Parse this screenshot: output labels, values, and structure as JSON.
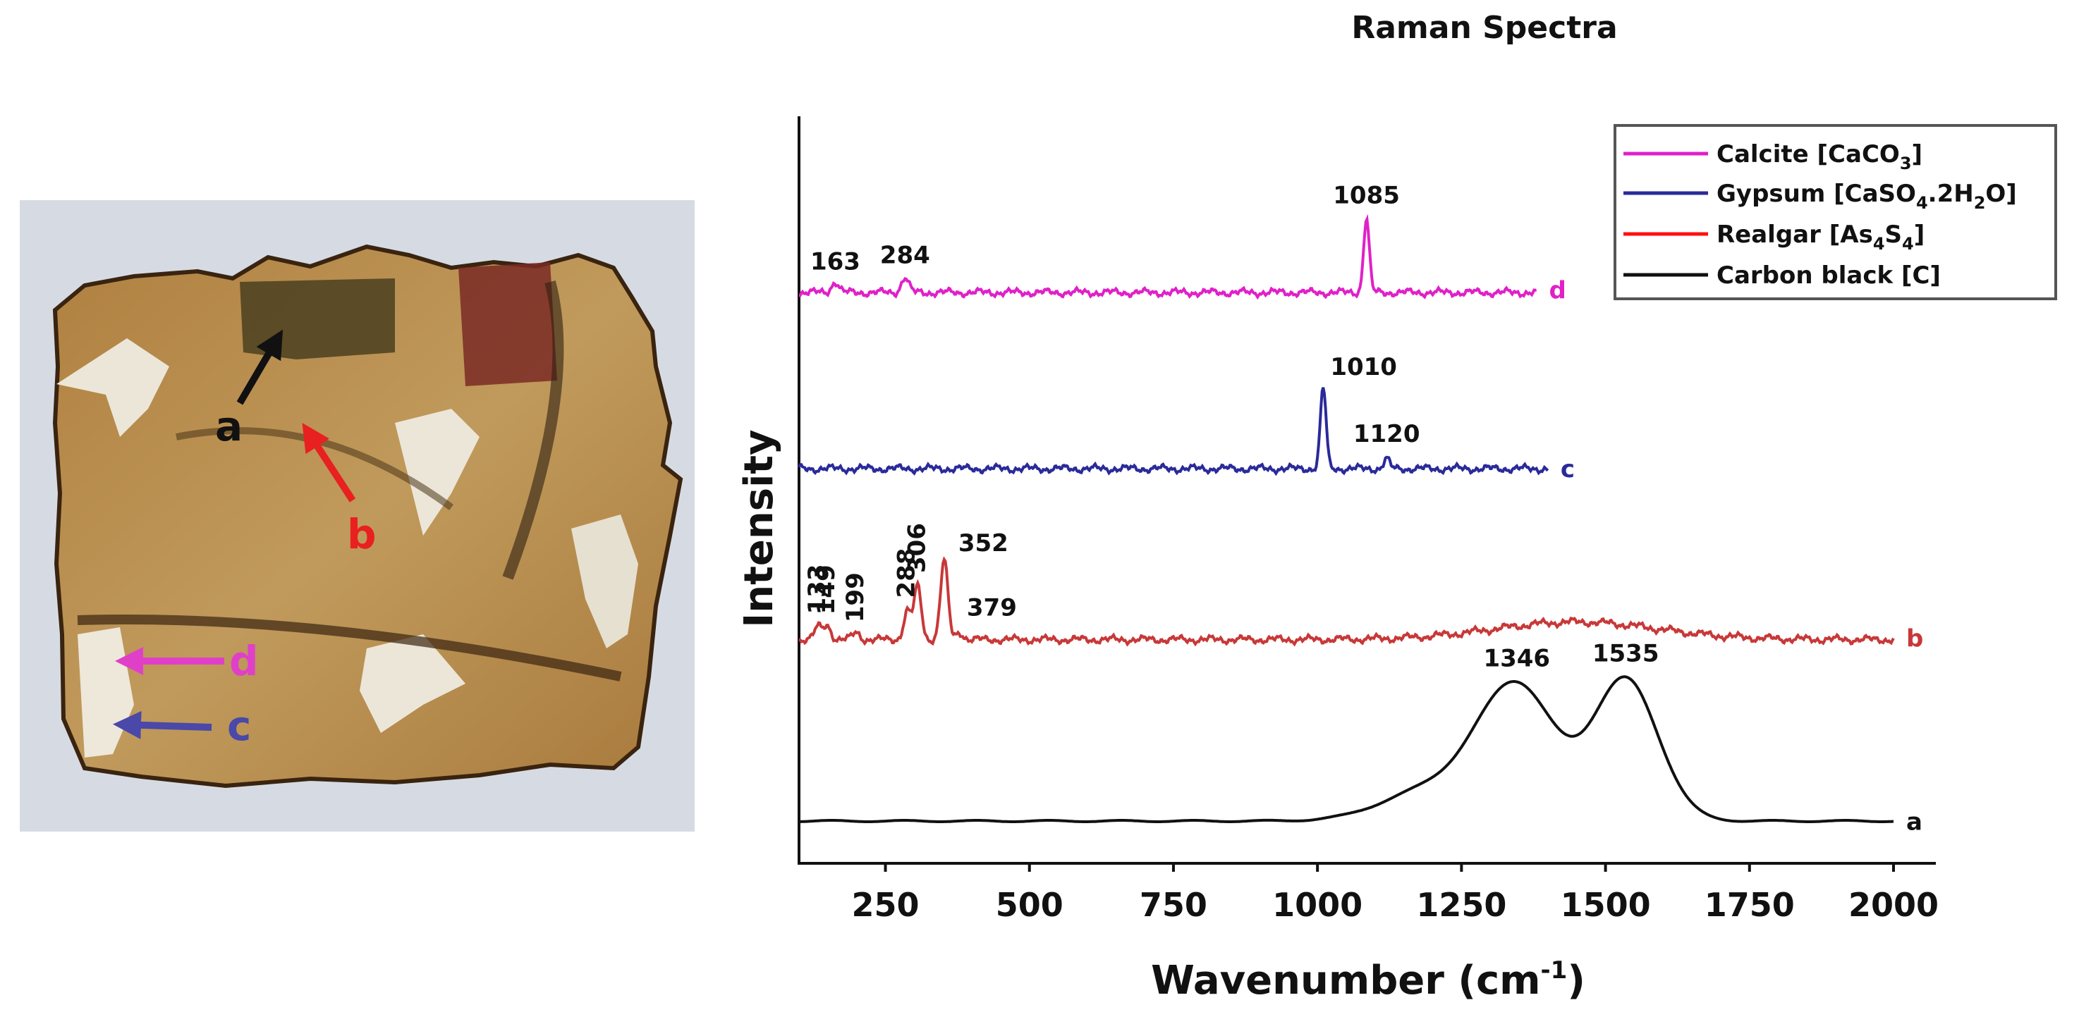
{
  "colors": {
    "calcite": "#e020c8",
    "gypsum": "#2a2a9a",
    "realgar": "#c83838",
    "carbon": "#111111",
    "legend_realgar": "#ff1010",
    "photo_d": "#e040c8",
    "photo_c": "#4a48a8"
  },
  "photo": {
    "labels": {
      "a": "a",
      "b": "b",
      "c": "c",
      "d": "d"
    }
  },
  "chart_data": {
    "type": "line",
    "title": "Raman Spectra",
    "xlabel": "Wavenumber (cm",
    "xlabel_sup": "-1",
    "xlabel_end": ")",
    "ylabel": "Intensity",
    "xlim": [
      100,
      2000
    ],
    "xticks": [
      250,
      500,
      750,
      1000,
      1250,
      1500,
      1750,
      2000
    ],
    "xtick_labels": [
      "250",
      "500",
      "750",
      "1000",
      "1250",
      "1500",
      "1750",
      "2000"
    ],
    "y_ticks_shown": false,
    "series": [
      {
        "name": "Calcite [CaCO3]",
        "legend": {
          "label": "Calcite [CaCO",
          "sub1": "3",
          "mid1": "]"
        },
        "trace_label": "d",
        "color_key": "calcite",
        "x_range": [
          100,
          1380
        ],
        "offset": 3.0,
        "peaks": [
          {
            "x": 163,
            "label": "163",
            "h": 0.06
          },
          {
            "x": 284,
            "label": "284",
            "h": 0.085
          },
          {
            "x": 1085,
            "label": "1085",
            "h": 0.42
          }
        ]
      },
      {
        "name": "Gypsum [CaSO4.2H2O]",
        "legend": {
          "label": "Gypsum [CaSO",
          "sub1": "4",
          "mid1": ".2H",
          "sub2": "2",
          "mid2": "O]"
        },
        "trace_label": "c",
        "color_key": "gypsum",
        "x_range": [
          100,
          1400
        ],
        "offset": 2.0,
        "peaks": [
          {
            "x": 1010,
            "label": "1010",
            "h": 0.46
          },
          {
            "x": 1120,
            "label": "1120",
            "h": 0.055
          }
        ]
      },
      {
        "name": "Realgar [As4S4]",
        "legend": {
          "label": "Realgar [As",
          "sub1": "4",
          "mid1": "S",
          "sub2": "4",
          "mid2": "]"
        },
        "trace_label": "b",
        "color_key": "realgar",
        "x_range": [
          100,
          2000
        ],
        "offset": 1.0,
        "peaks": [
          {
            "x": 133,
            "label": "133",
            "h": 0.07
          },
          {
            "x": 149,
            "label": "149",
            "h": 0.08
          },
          {
            "x": 199,
            "label": "199",
            "h": 0.04
          },
          {
            "x": 288,
            "label": "288",
            "h": 0.16
          },
          {
            "x": 306,
            "label": "306",
            "h": 0.3
          },
          {
            "x": 352,
            "label": "352",
            "h": 0.45
          },
          {
            "x": 379,
            "label": "379",
            "h": 0.04
          }
        ]
      },
      {
        "name": "Carbon black [C]",
        "legend": {
          "label": "Carbon black [C]"
        },
        "trace_label": "a",
        "color_key": "carbon",
        "x_range": [
          100,
          2000
        ],
        "offset": 0.0,
        "peaks": [
          {
            "x": 1346,
            "label": "1346",
            "h": 0.75
          },
          {
            "x": 1535,
            "label": "1535",
            "h": 0.8
          }
        ]
      }
    ]
  }
}
